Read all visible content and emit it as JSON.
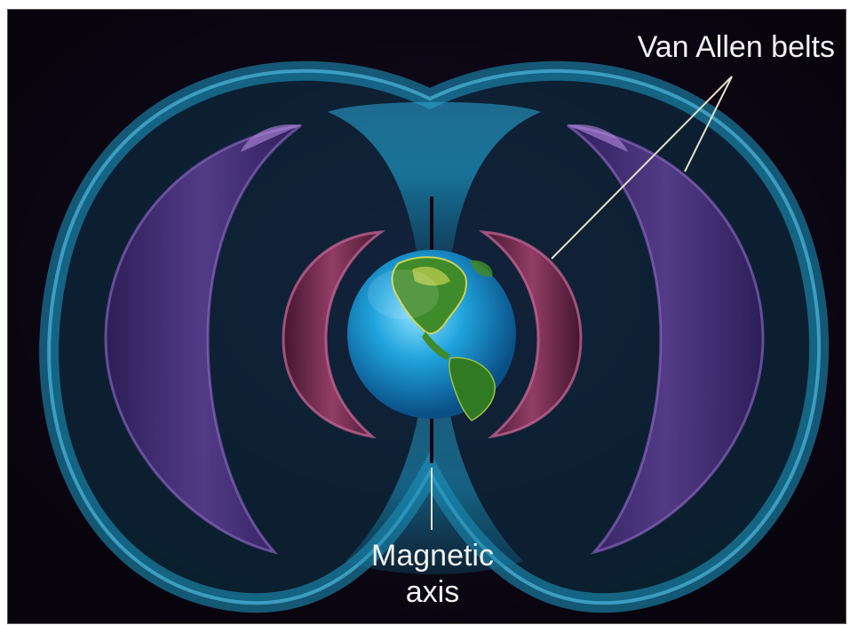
{
  "labels": {
    "belts": "Van Allen belts",
    "axis": "Magnetic\naxis"
  },
  "colors": {
    "background": "#0b0712",
    "magnetosphere": "#1a8fb8",
    "outer_belt": "#6a3aa0",
    "inner_belt": "#8a2a55",
    "earth_ocean": "#1fa3dc",
    "earth_land": "#3f8a2a",
    "label_text": "#f2f2f2"
  }
}
